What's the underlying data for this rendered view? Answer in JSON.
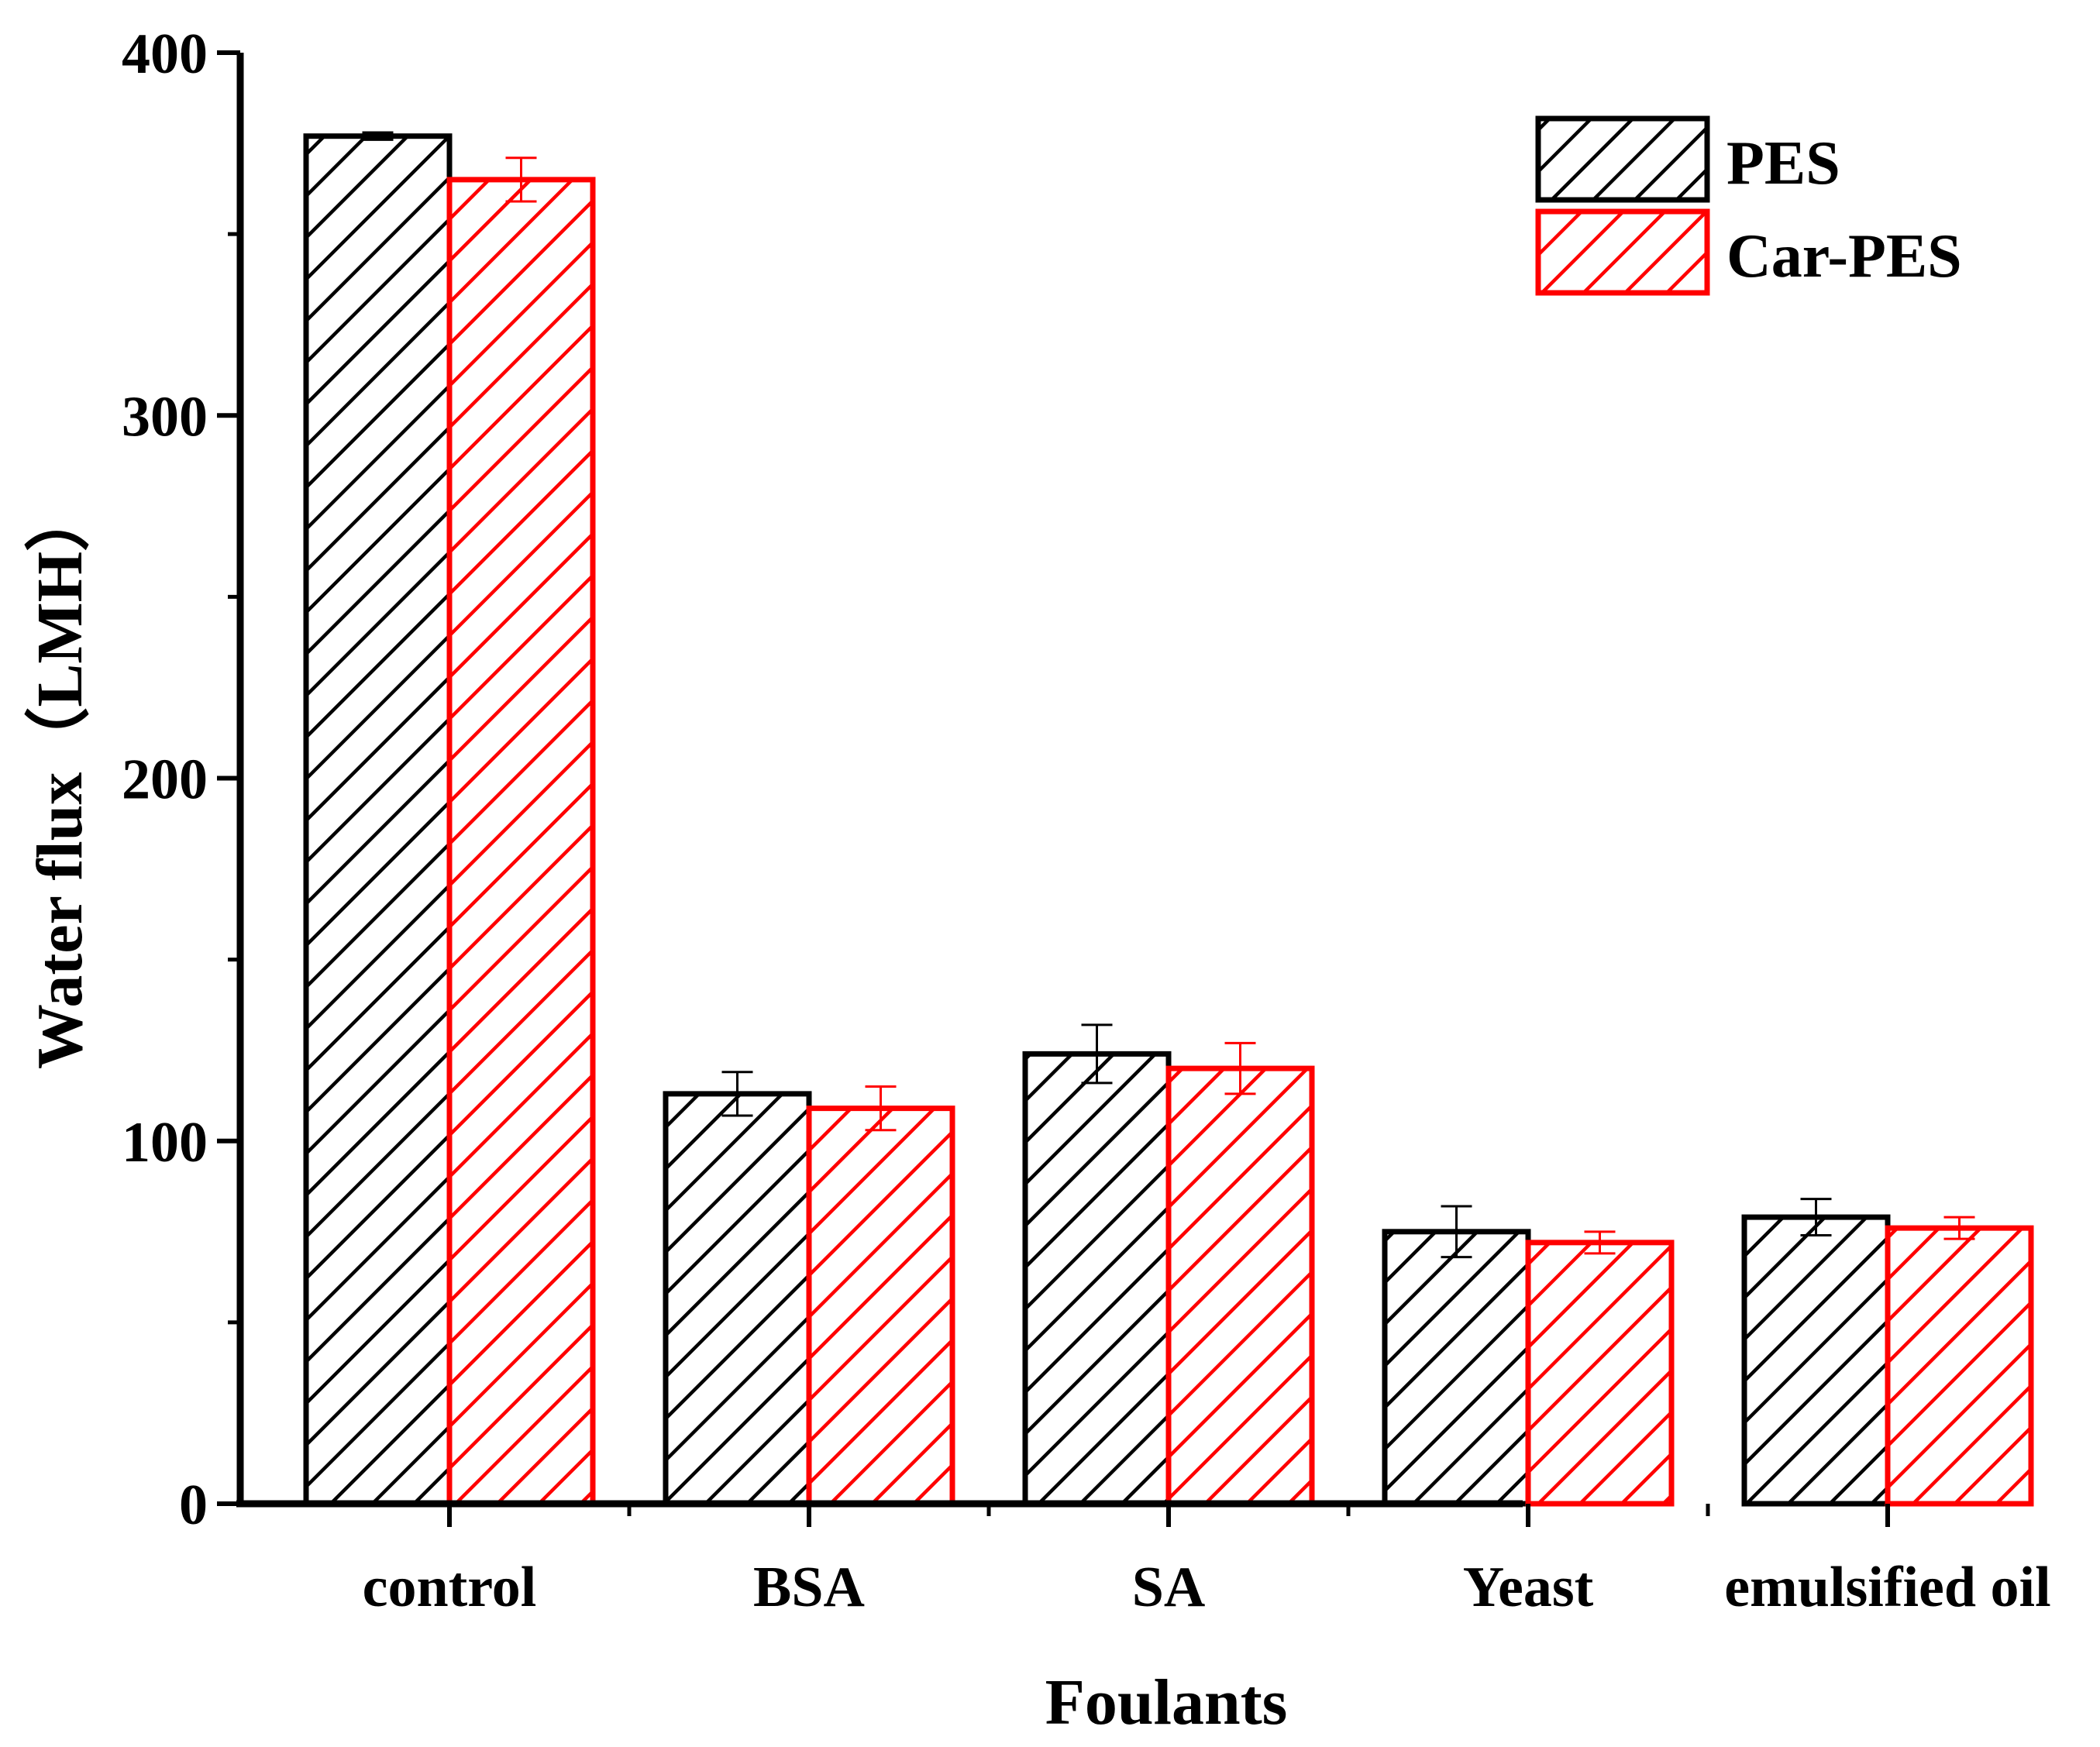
{
  "chart_data": {
    "type": "bar",
    "title": "",
    "xlabel": "Foulants",
    "ylabel": "Water flux（LMH）",
    "ylim": [
      0,
      400
    ],
    "yticks": [
      0,
      100,
      200,
      300,
      400
    ],
    "categories": [
      "control",
      "BSA",
      "SA",
      "Yeast",
      "emulsified oil"
    ],
    "series": [
      {
        "name": "PES",
        "color": "#000000",
        "pattern": "hatch",
        "values": [
          377,
          113,
          124,
          75,
          79
        ],
        "errors": [
          1,
          6,
          8,
          7,
          5
        ]
      },
      {
        "name": "Car-PES",
        "color": "#ff0000",
        "pattern": "hatch",
        "values": [
          365,
          109,
          120,
          72,
          76
        ],
        "errors": [
          6,
          6,
          7,
          3,
          3
        ]
      }
    ],
    "legend_position": "top-right",
    "grid": false
  }
}
